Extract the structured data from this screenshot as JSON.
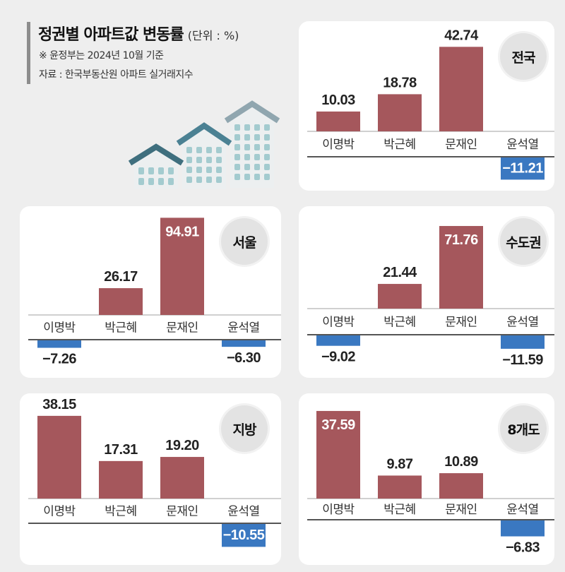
{
  "header": {
    "title": "정권별 아파트값 변동률",
    "unit": "(단위 : %)",
    "note": "※ 윤정부는 2024년 10월 기준",
    "source": "자료 : 한국부동산원 아파트 실거래지수"
  },
  "illustration": {
    "icon": "apartment-buildings-icon"
  },
  "colors": {
    "positive_bar": "#a5575c",
    "negative_bar": "#3a78c1",
    "page_background": "#eeeeee",
    "panel_background": "#ffffff",
    "badge_background": "#e3e3e3"
  },
  "chart_data": [
    {
      "type": "bar",
      "title": "전국",
      "categories": [
        "이명박",
        "박근혜",
        "문재인",
        "윤석열"
      ],
      "values": [
        10.03,
        18.78,
        42.74,
        -11.21
      ],
      "grid": false
    },
    {
      "type": "bar",
      "title": "서울",
      "categories": [
        "이명박",
        "박근혜",
        "문재인",
        "윤석열"
      ],
      "values": [
        -7.26,
        26.17,
        94.91,
        -6.3
      ],
      "grid": false
    },
    {
      "type": "bar",
      "title": "수도권",
      "categories": [
        "이명박",
        "박근혜",
        "문재인",
        "윤석열"
      ],
      "values": [
        -9.02,
        21.44,
        71.76,
        -11.59
      ],
      "grid": false
    },
    {
      "type": "bar",
      "title": "지방",
      "categories": [
        "이명박",
        "박근혜",
        "문재인",
        "윤석열"
      ],
      "values": [
        38.15,
        17.31,
        19.2,
        -10.55
      ],
      "grid": false
    },
    {
      "type": "bar",
      "title": "8개도",
      "categories": [
        "이명박",
        "박근혜",
        "문재인",
        "윤석열"
      ],
      "values": [
        37.59,
        9.87,
        10.89,
        -6.83
      ],
      "grid": false
    }
  ]
}
